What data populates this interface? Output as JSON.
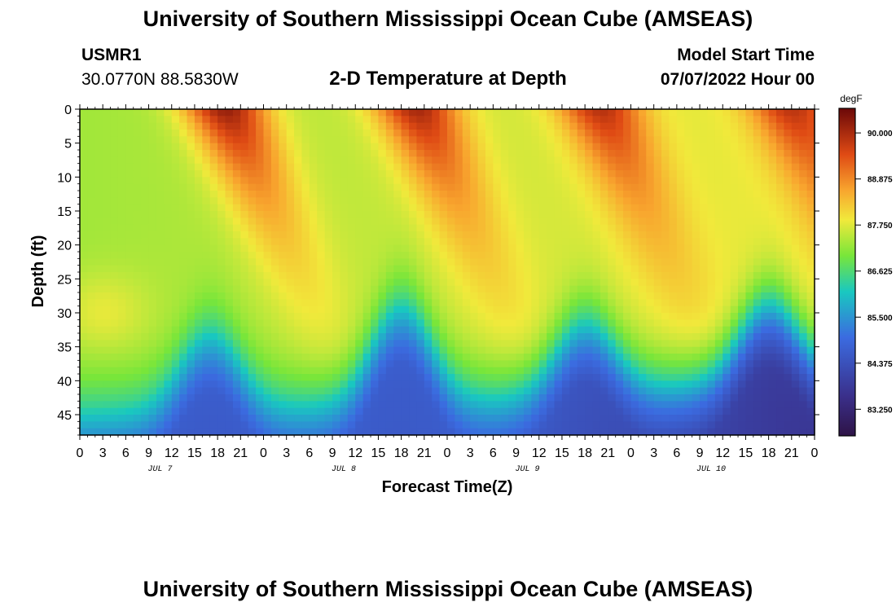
{
  "header": {
    "title": "University of Southern Mississippi Ocean Cube (AMSEAS)",
    "station_id": "USMR1",
    "station_coords": "30.0770N  88.5830W",
    "subtitle": "2-D Temperature at Depth",
    "model_start_label": "Model Start Time",
    "model_start_value": "07/07/2022 Hour 00"
  },
  "footer": {
    "title": "University of Southern Mississippi Ocean Cube (AMSEAS)"
  },
  "chart_data": {
    "type": "heatmap",
    "title": "2-D Temperature at Depth",
    "xlabel": "Forecast Time(Z)",
    "ylabel": "Depth (ft)",
    "x_hours_range": [
      0,
      96
    ],
    "x_tick_step_hours": 3,
    "x_tick_labels": [
      "0",
      "3",
      "6",
      "9",
      "12",
      "15",
      "18",
      "21",
      "0",
      "3",
      "6",
      "9",
      "12",
      "15",
      "18",
      "21",
      "0",
      "3",
      "6",
      "9",
      "12",
      "15",
      "18",
      "21",
      "0",
      "3",
      "6",
      "9",
      "12",
      "15",
      "18",
      "21",
      "0"
    ],
    "day_labels": [
      {
        "label": "JUL 7",
        "hour": 9
      },
      {
        "label": "JUL 8",
        "hour": 33
      },
      {
        "label": "JUL 9",
        "hour": 57
      },
      {
        "label": "JUL 10",
        "hour": 81
      }
    ],
    "y_range_ft": [
      0,
      48
    ],
    "y_ticks": [
      0,
      5,
      10,
      15,
      20,
      25,
      30,
      35,
      40,
      45
    ],
    "colorbar": {
      "unit": "degF",
      "range": [
        82.6,
        90.6
      ],
      "tick_values": [
        90.0,
        88.875,
        87.75,
        86.625,
        85.5,
        84.375,
        83.25
      ],
      "tick_labels": [
        "90.000",
        "88.875",
        "87.750",
        "86.625",
        "85.500",
        "84.375",
        "83.250"
      ]
    },
    "field_description": "Warm diurnal surface plumes peaking near hours 18-21 each day; thermocline oscillating between ~33 and ~45 ft; cool water (~83 degF) at bottom",
    "sample_profiles": [
      {
        "hour": 0,
        "depth_ft": [
          0,
          10,
          20,
          30,
          40,
          47
        ],
        "temp_f": [
          87.4,
          87.4,
          87.5,
          87.9,
          86.0,
          85.4
        ]
      },
      {
        "hour": 20,
        "depth_ft": [
          0,
          10,
          20,
          30,
          40,
          47
        ],
        "temp_f": [
          90.4,
          88.2,
          87.2,
          86.6,
          85.2,
          84.6
        ]
      },
      {
        "hour": 44,
        "depth_ft": [
          0,
          10,
          20,
          30,
          40,
          47
        ],
        "temp_f": [
          90.0,
          89.0,
          87.5,
          86.3,
          84.8,
          84.2
        ]
      },
      {
        "hour": 70,
        "depth_ft": [
          0,
          10,
          20,
          30,
          40,
          47
        ],
        "temp_f": [
          89.7,
          89.0,
          87.6,
          86.7,
          84.4,
          83.6
        ]
      },
      {
        "hour": 92,
        "depth_ft": [
          0,
          10,
          20,
          30,
          40,
          47
        ],
        "temp_f": [
          89.4,
          89.2,
          88.6,
          86.8,
          83.7,
          82.9
        ]
      }
    ]
  }
}
